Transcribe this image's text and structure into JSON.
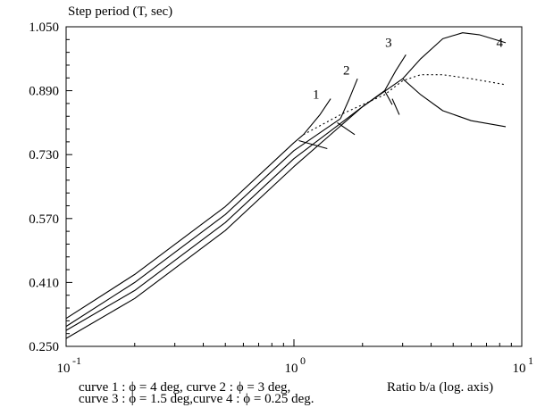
{
  "chart_data": {
    "type": "line",
    "ylabel": "Step period (T, sec)",
    "xlabel": "Ratio b/a  (log. axis)",
    "x_scale": "log",
    "xlim": [
      0.1,
      10
    ],
    "ylim": [
      0.25,
      1.05
    ],
    "grid": false,
    "y_ticks": [
      "1.050",
      "0.890",
      "0.730",
      "0.570",
      "0.410",
      "0.250"
    ],
    "x_ticks": [
      {
        "base": "10",
        "exp": "-1"
      },
      {
        "base": "10",
        "exp": "0"
      },
      {
        "base": "10",
        "exp": "1"
      }
    ],
    "curve_labels": [
      "1",
      "2",
      "3",
      "4"
    ],
    "series": [
      {
        "name": "curve 1",
        "x": [
          0.1,
          0.2,
          0.5,
          1.0,
          1.1
        ],
        "y": [
          0.32,
          0.43,
          0.6,
          0.76,
          0.78
        ]
      },
      {
        "name": "curve 2",
        "x": [
          0.1,
          0.2,
          0.5,
          1.0,
          1.6
        ],
        "y": [
          0.3,
          0.41,
          0.58,
          0.74,
          0.82
        ]
      },
      {
        "name": "curve 3",
        "x": [
          0.1,
          0.2,
          0.5,
          1.0,
          2.0,
          2.5
        ],
        "y": [
          0.29,
          0.39,
          0.56,
          0.72,
          0.85,
          0.89
        ]
      },
      {
        "name": "curve 4",
        "x": [
          0.1,
          0.2,
          0.5,
          1.0,
          2.0,
          3.0
        ],
        "y": [
          0.27,
          0.37,
          0.54,
          0.7,
          0.85,
          0.92
        ]
      },
      {
        "name": "curve 1 upper",
        "x": [
          1.1,
          1.3,
          1.45
        ],
        "y": [
          0.78,
          0.83,
          0.87
        ]
      },
      {
        "name": "curve 2 upper",
        "x": [
          1.6,
          1.75,
          1.9
        ],
        "y": [
          0.82,
          0.87,
          0.92
        ]
      },
      {
        "name": "curve 3 upper",
        "x": [
          2.5,
          2.8,
          3.1
        ],
        "y": [
          0.89,
          0.94,
          0.98
        ]
      },
      {
        "name": "curve 4 upper",
        "x": [
          3.0,
          3.6,
          4.5,
          5.5,
          6.5,
          8.5
        ],
        "y": [
          0.92,
          0.97,
          1.02,
          1.035,
          1.03,
          1.01
        ]
      },
      {
        "name": "curve 4 lower",
        "x": [
          3.0,
          3.6,
          4.5,
          6.0,
          8.5
        ],
        "y": [
          0.92,
          0.88,
          0.84,
          0.815,
          0.8
        ]
      },
      {
        "name": "dotted",
        "x": [
          1.1,
          1.6,
          2.5,
          3.0,
          3.6,
          4.5,
          6.0,
          8.5
        ],
        "y": [
          0.78,
          0.83,
          0.88,
          0.915,
          0.93,
          0.93,
          0.92,
          0.905
        ],
        "style": "dotted"
      },
      {
        "name": "tick a",
        "x": [
          1.05,
          1.4
        ],
        "y": [
          0.765,
          0.745
        ]
      },
      {
        "name": "tick b",
        "x": [
          1.55,
          1.85
        ],
        "y": [
          0.81,
          0.78
        ]
      },
      {
        "name": "tick c",
        "x": [
          2.5,
          2.7
        ],
        "y": [
          0.89,
          0.855
        ]
      },
      {
        "name": "tick d",
        "x": [
          2.7,
          2.9
        ],
        "y": [
          0.87,
          0.83
        ]
      }
    ],
    "annotations": [
      {
        "text": "1",
        "x": 1.25,
        "y": 0.87
      },
      {
        "text": "2",
        "x": 1.7,
        "y": 0.93
      },
      {
        "text": "3",
        "x": 2.6,
        "y": 1.0
      },
      {
        "text": "4",
        "x": 8.0,
        "y": 1.0
      }
    ],
    "notes": [
      "curve 1 : ϕ = 4 deg,   curve 2 : ϕ = 3 deg,",
      "curve 3 : ϕ = 1.5 deg,curve 4 : ϕ = 0.25 deg."
    ]
  }
}
